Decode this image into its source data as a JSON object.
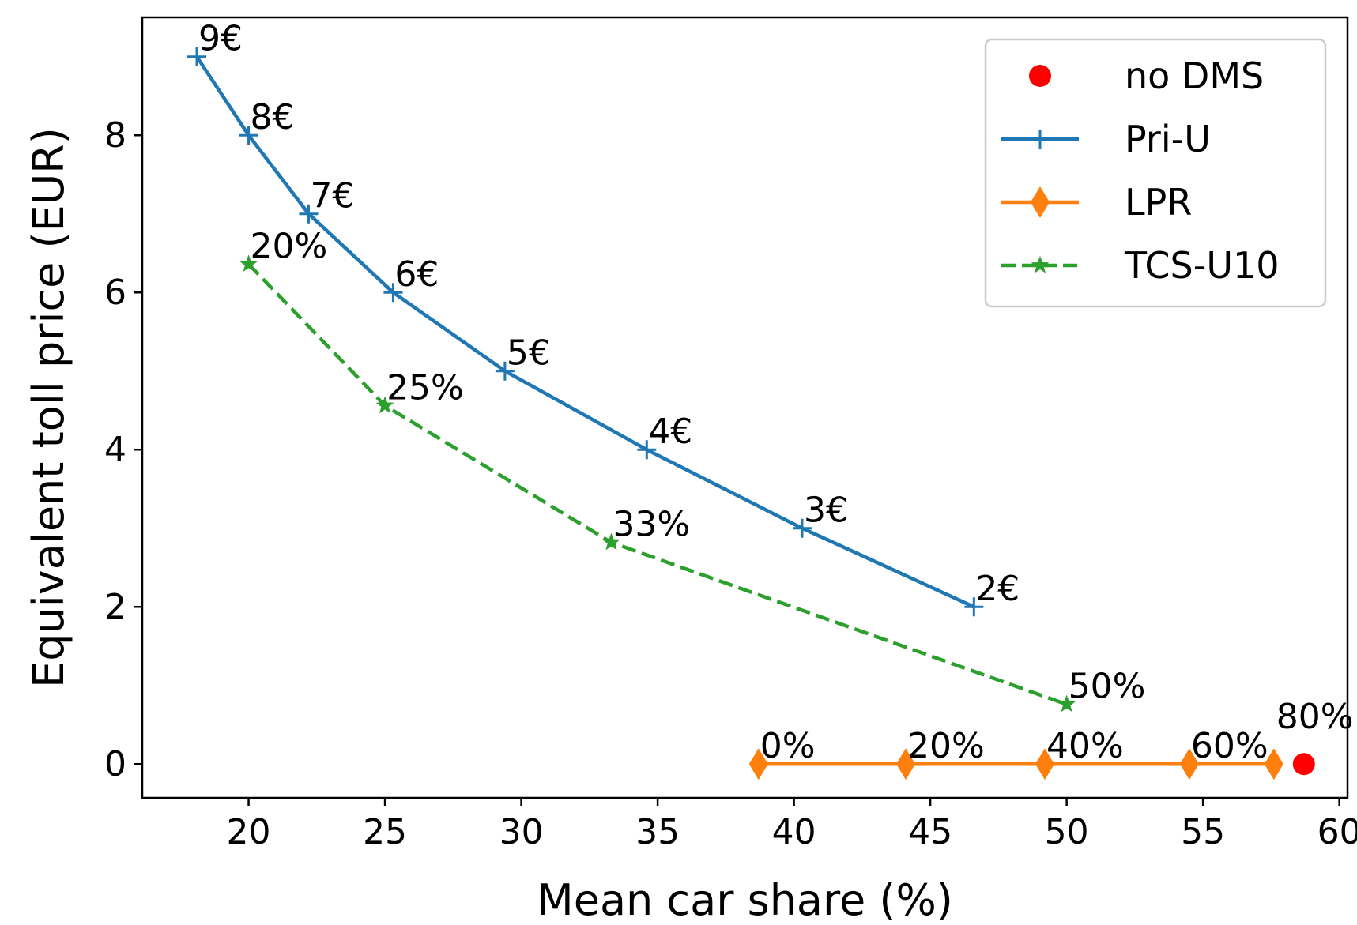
{
  "chart_data": {
    "type": "line",
    "title": "",
    "xlabel": "Mean car share (%)",
    "ylabel": "Equivalent toll price (EUR)",
    "xlim": [
      16.1,
      60.3
    ],
    "ylim": [
      -0.43,
      9.5
    ],
    "xticks": [
      20,
      25,
      30,
      35,
      40,
      45,
      50,
      55,
      60
    ],
    "yticks": [
      0,
      2,
      4,
      6,
      8
    ],
    "grid": false,
    "legend_position": "top-right",
    "series": [
      {
        "name": "no DMS",
        "style": "marker",
        "marker": "circle",
        "color": "#ff0000",
        "points": [
          {
            "x": 58.7,
            "y": 0,
            "label": "80%"
          }
        ]
      },
      {
        "name": "Pri-U",
        "style": "solid",
        "marker": "plus",
        "color": "#1f77b4",
        "points": [
          {
            "x": 18.1,
            "y": 9,
            "label": "9€"
          },
          {
            "x": 20.0,
            "y": 8,
            "label": "8€"
          },
          {
            "x": 22.2,
            "y": 7,
            "label": "7€"
          },
          {
            "x": 25.3,
            "y": 6,
            "label": "6€"
          },
          {
            "x": 29.4,
            "y": 5,
            "label": "5€"
          },
          {
            "x": 34.6,
            "y": 4,
            "label": "4€"
          },
          {
            "x": 40.3,
            "y": 3,
            "label": "3€"
          },
          {
            "x": 46.6,
            "y": 2,
            "label": "2€"
          }
        ]
      },
      {
        "name": "LPR",
        "style": "solid",
        "marker": "diamond",
        "color": "#ff7f0e",
        "points": [
          {
            "x": 38.7,
            "y": 0,
            "label": "0%"
          },
          {
            "x": 44.1,
            "y": 0,
            "label": "20%"
          },
          {
            "x": 49.2,
            "y": 0,
            "label": "40%"
          },
          {
            "x": 54.5,
            "y": 0,
            "label": "60%"
          },
          {
            "x": 57.6,
            "y": 0,
            "label": ""
          }
        ]
      },
      {
        "name": "TCS-U10",
        "style": "dashed",
        "marker": "star",
        "color": "#2ca02c",
        "points": [
          {
            "x": 20.0,
            "y": 6.36,
            "label": "20%"
          },
          {
            "x": 25.0,
            "y": 4.56,
            "label": "25%"
          },
          {
            "x": 33.3,
            "y": 2.82,
            "label": "33%"
          },
          {
            "x": 50.0,
            "y": 0.76,
            "label": "50%"
          }
        ]
      }
    ]
  }
}
